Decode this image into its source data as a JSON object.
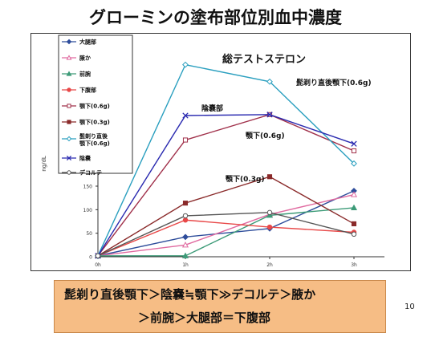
{
  "title": "グローミンの塗布部位別血中濃度",
  "summary": {
    "line1": "髭剃り直後顎下＞陰嚢≒顎下≫デコルテ＞腋か",
    "line2": "＞前腕＞大腿部＝下腹部"
  },
  "page_number": "10",
  "chart_data": {
    "type": "line",
    "title": "総テストステロン",
    "ylabel": "ng/dL",
    "xlabel": "",
    "categories": [
      "0h",
      "1h",
      "2h",
      "3h"
    ],
    "ylim": [
      0,
      450
    ],
    "yticks": [
      "0",
      "50",
      "100",
      "150",
      "200",
      "250",
      "300",
      "350",
      "400",
      "450"
    ],
    "grid": false,
    "legend_position": "top-left",
    "series": [
      {
        "name": "大腿部",
        "values": [
          2,
          42,
          60,
          140
        ],
        "color": "#2e4d9b",
        "marker": "diamond",
        "fill": true
      },
      {
        "name": "腋か",
        "values": [
          2,
          25,
          90,
          132
        ],
        "color": "#e06aa0",
        "marker": "triangle",
        "fill": false
      },
      {
        "name": "前腕",
        "values": [
          2,
          2,
          88,
          104
        ],
        "color": "#3d9b78",
        "marker": "triangle",
        "fill": true
      },
      {
        "name": "下腹部",
        "values": [
          2,
          78,
          63,
          52
        ],
        "color": "#e84848",
        "marker": "circle",
        "fill": true
      },
      {
        "name": "顎下(0.6g)",
        "values": [
          2,
          248,
          302,
          225
        ],
        "color": "#a0304a",
        "marker": "square",
        "fill": false
      },
      {
        "name": "顎下(0.3g)",
        "values": [
          2,
          114,
          170,
          70
        ],
        "color": "#8a2a2a",
        "marker": "square",
        "fill": true
      },
      {
        "name": "髭剃り直後顎下(0.6g)",
        "values": [
          2,
          408,
          372,
          198
        ],
        "color": "#2a9fbf",
        "marker": "diamond",
        "fill": false
      },
      {
        "name": "陰嚢",
        "values": [
          2,
          300,
          302,
          240
        ],
        "color": "#2a2ab0",
        "marker": "x",
        "fill": false
      },
      {
        "name": "デコルテ",
        "values": [
          2,
          87,
          94,
          48
        ],
        "color": "#555555",
        "marker": "circle",
        "fill": false
      }
    ],
    "annotations": [
      {
        "text": "髭剃り直後顎下(0.6g)"
      },
      {
        "text": "陰嚢部"
      },
      {
        "text": "顎下(0.6g)"
      },
      {
        "text": "顎下(0.3g)"
      }
    ]
  }
}
